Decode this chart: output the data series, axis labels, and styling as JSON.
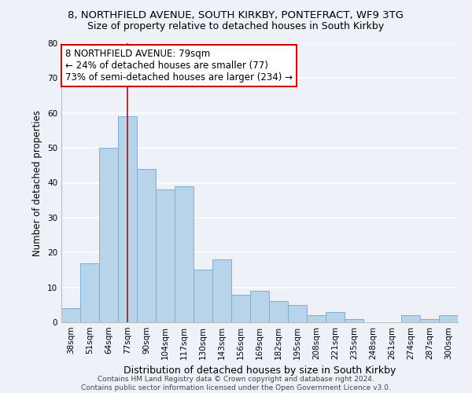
{
  "title_line1": "8, NORTHFIELD AVENUE, SOUTH KIRKBY, PONTEFRACT, WF9 3TG",
  "title_line2": "Size of property relative to detached houses in South Kirkby",
  "xlabel": "Distribution of detached houses by size in South Kirkby",
  "ylabel": "Number of detached properties",
  "bar_color": "#b8d4ea",
  "bar_edge_color": "#7bafd4",
  "categories": [
    "38sqm",
    "51sqm",
    "64sqm",
    "77sqm",
    "90sqm",
    "104sqm",
    "117sqm",
    "130sqm",
    "143sqm",
    "156sqm",
    "169sqm",
    "182sqm",
    "195sqm",
    "208sqm",
    "221sqm",
    "235sqm",
    "248sqm",
    "261sqm",
    "274sqm",
    "287sqm",
    "300sqm"
  ],
  "values": [
    4,
    17,
    50,
    59,
    44,
    38,
    39,
    15,
    18,
    8,
    9,
    6,
    5,
    2,
    3,
    1,
    0,
    0,
    2,
    1,
    2
  ],
  "ylim": [
    0,
    80
  ],
  "yticks": [
    0,
    10,
    20,
    30,
    40,
    50,
    60,
    70,
    80
  ],
  "annotation_line1": "8 NORTHFIELD AVENUE: 79sqm",
  "annotation_line2": "← 24% of detached houses are smaller (77)",
  "annotation_line3": "73% of semi-detached houses are larger (234) →",
  "annotation_box_color": "#ffffff",
  "annotation_box_edge_color": "#cc0000",
  "property_bar_index": 3,
  "footer_line1": "Contains HM Land Registry data © Crown copyright and database right 2024.",
  "footer_line2": "Contains public sector information licensed under the Open Government Licence v3.0.",
  "background_color": "#eef2f8",
  "grid_color": "#ffffff",
  "title_fontsize": 9.5,
  "subtitle_fontsize": 9,
  "xlabel_fontsize": 9,
  "ylabel_fontsize": 8.5,
  "tick_fontsize": 7.5,
  "footer_fontsize": 6.5,
  "annotation_fontsize": 8.5
}
